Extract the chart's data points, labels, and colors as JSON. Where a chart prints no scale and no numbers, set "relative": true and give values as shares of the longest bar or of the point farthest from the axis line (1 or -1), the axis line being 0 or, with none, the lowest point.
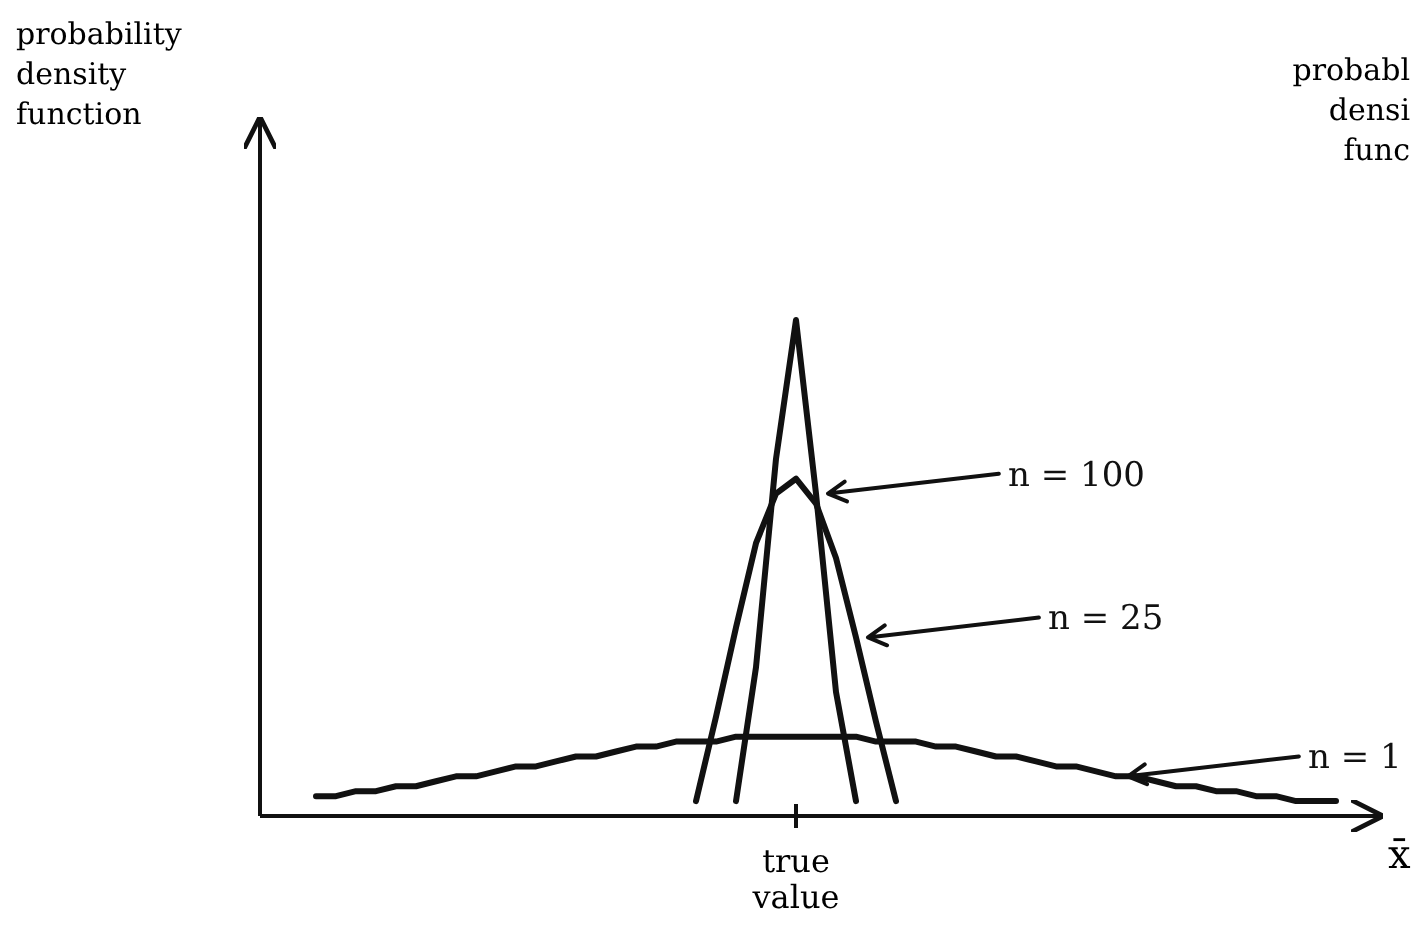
{
  "chart_data": {
    "type": "line",
    "relative": true,
    "xlabel": "x̄",
    "categories": [
      null,
      null,
      null,
      null,
      null,
      null,
      null,
      null,
      null,
      null,
      null,
      null,
      null,
      null,
      null,
      null,
      null,
      null,
      null,
      null,
      null,
      null,
      null,
      null,
      null,
      null,
      null,
      null,
      null,
      null,
      null,
      null,
      null,
      null,
      null,
      null,
      null,
      null,
      null,
      null,
      null,
      null,
      null,
      null,
      null,
      null,
      null,
      null,
      null,
      null,
      null,
      null,
      null
    ],
    "series": [
      {
        "name": "n = 100",
        "color": "#111111",
        "values": [
          null,
          null,
          null,
          null,
          null,
          null,
          null,
          null,
          null,
          null,
          null,
          null,
          null,
          null,
          null,
          null,
          null,
          null,
          null,
          null,
          null,
          null,
          0.03,
          0.3,
          0.72,
          1.0,
          0.65,
          0.25,
          0.03,
          null,
          null,
          null,
          null,
          null,
          null,
          null,
          null,
          null,
          null,
          null,
          null,
          null,
          null,
          null,
          null,
          null,
          null,
          null,
          null,
          null,
          null,
          null,
          null
        ]
      },
      {
        "name": "n = 25",
        "color": "#111111",
        "values": [
          null,
          null,
          null,
          null,
          null,
          null,
          null,
          null,
          null,
          null,
          null,
          null,
          null,
          null,
          null,
          null,
          null,
          null,
          null,
          null,
          0.03,
          0.2,
          0.38,
          0.55,
          0.65,
          0.68,
          0.63,
          0.52,
          0.36,
          0.19,
          0.03,
          null,
          null,
          null,
          null,
          null,
          null,
          null,
          null,
          null,
          null,
          null,
          null,
          null,
          null,
          null,
          null,
          null,
          null,
          null,
          null,
          null,
          null
        ]
      },
      {
        "name": "n = 1",
        "color": "#111111",
        "values": [
          null,
          0.04,
          0.04,
          0.05,
          0.05,
          0.06,
          0.06,
          0.07,
          0.08,
          0.08,
          0.09,
          0.1,
          0.1,
          0.11,
          0.12,
          0.12,
          0.13,
          0.14,
          0.14,
          0.15,
          0.15,
          0.15,
          0.16,
          0.16,
          0.16,
          0.16,
          0.16,
          0.16,
          0.16,
          0.15,
          0.15,
          0.15,
          0.14,
          0.14,
          0.13,
          0.12,
          0.12,
          0.11,
          0.1,
          0.1,
          0.09,
          0.08,
          0.08,
          0.07,
          0.06,
          0.06,
          0.05,
          0.05,
          0.04,
          0.04,
          0.03,
          0.03,
          0.03
        ]
      }
    ],
    "annotations": [
      "probability density function",
      "probabl densi func",
      {
        "text": "true value"
      }
    ]
  }
}
